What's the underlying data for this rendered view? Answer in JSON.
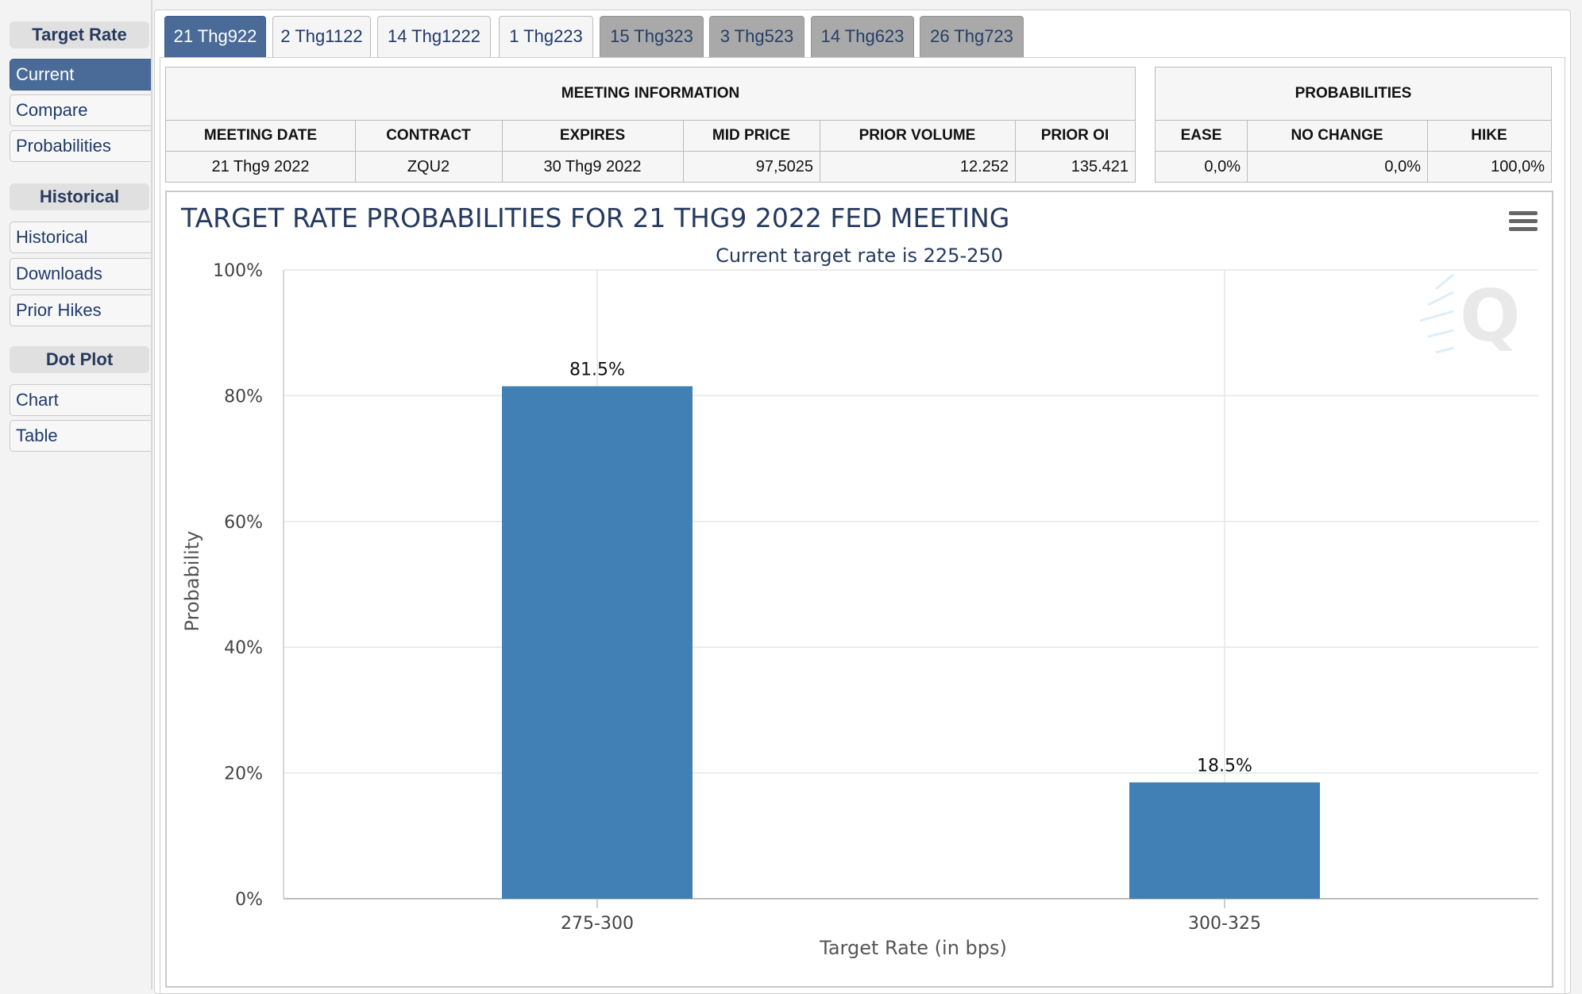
{
  "sidebar": {
    "target_rate_heading": "Target Rate",
    "items_top": [
      "Current",
      "Compare",
      "Probabilities"
    ],
    "historical_heading": "Historical",
    "items_hist": [
      "Historical",
      "Downloads",
      "Prior Hikes"
    ],
    "dot_plot_heading": "Dot Plot",
    "items_dot": [
      "Chart",
      "Table"
    ]
  },
  "tabs": [
    "21 Thg922",
    "2 Thg1122",
    "14 Thg1222",
    "1 Thg223",
    "15 Thg323",
    "3 Thg523",
    "14 Thg623",
    "26 Thg723"
  ],
  "meeting_info": {
    "title": "MEETING INFORMATION",
    "headers": [
      "MEETING DATE",
      "CONTRACT",
      "EXPIRES",
      "MID PRICE",
      "PRIOR VOLUME",
      "PRIOR OI"
    ],
    "row": [
      "21 Thg9 2022",
      "ZQU2",
      "30 Thg9 2022",
      "97,5025",
      "12.252",
      "135.421"
    ]
  },
  "probabilities": {
    "title": "PROBABILITIES",
    "headers": [
      "EASE",
      "NO CHANGE",
      "HIKE"
    ],
    "row": [
      "0,0%",
      "0,0%",
      "100,0%"
    ]
  },
  "colors": {
    "accent": "#4a6b97",
    "bar": "#4180b4",
    "title": "#263a5e"
  },
  "chart_data": {
    "type": "bar",
    "title": "TARGET RATE PROBABILITIES FOR 21 THG9 2022 FED MEETING",
    "subtitle": "Current target rate is 225-250",
    "xlabel": "Target Rate (in bps)",
    "ylabel": "Probability",
    "categories": [
      "275-300",
      "300-325"
    ],
    "values": [
      81.5,
      18.5
    ],
    "data_labels": [
      "81.5%",
      "18.5%"
    ],
    "ylim": [
      0,
      100
    ],
    "yticks": [
      0,
      20,
      40,
      60,
      80,
      100
    ],
    "ytick_labels": [
      "0%",
      "20%",
      "40%",
      "60%",
      "80%",
      "100%"
    ],
    "grid": true,
    "legend": "none"
  }
}
